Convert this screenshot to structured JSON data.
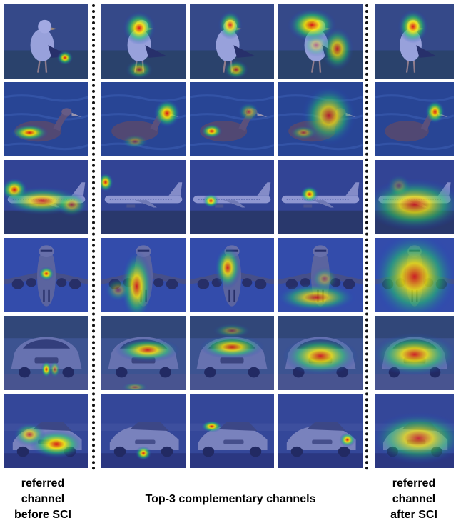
{
  "figure": {
    "columns": [
      {
        "group": "referred channel before SCI"
      },
      {
        "group": "Top-3 complementary channels",
        "rank": 1
      },
      {
        "group": "Top-3 complementary channels",
        "rank": 2
      },
      {
        "group": "Top-3 complementary channels",
        "rank": 3
      },
      {
        "group": "referred channel after SCI"
      }
    ],
    "rows": [
      "gull",
      "albatross",
      "airliner-side",
      "airliner-front",
      "car-front",
      "car-three-quarter"
    ],
    "captions": {
      "before": "referred\nchannel\nbefore SCI",
      "middle": "Top-3  complementary channels",
      "after": "referred\nchannel\nafter SCI"
    },
    "colors": {
      "heat_low": "#2233cc",
      "heat_mid": "#22cc66",
      "heat_high": "#ffee00",
      "heat_peak": "#dd1111",
      "divider": "#111111"
    }
  }
}
